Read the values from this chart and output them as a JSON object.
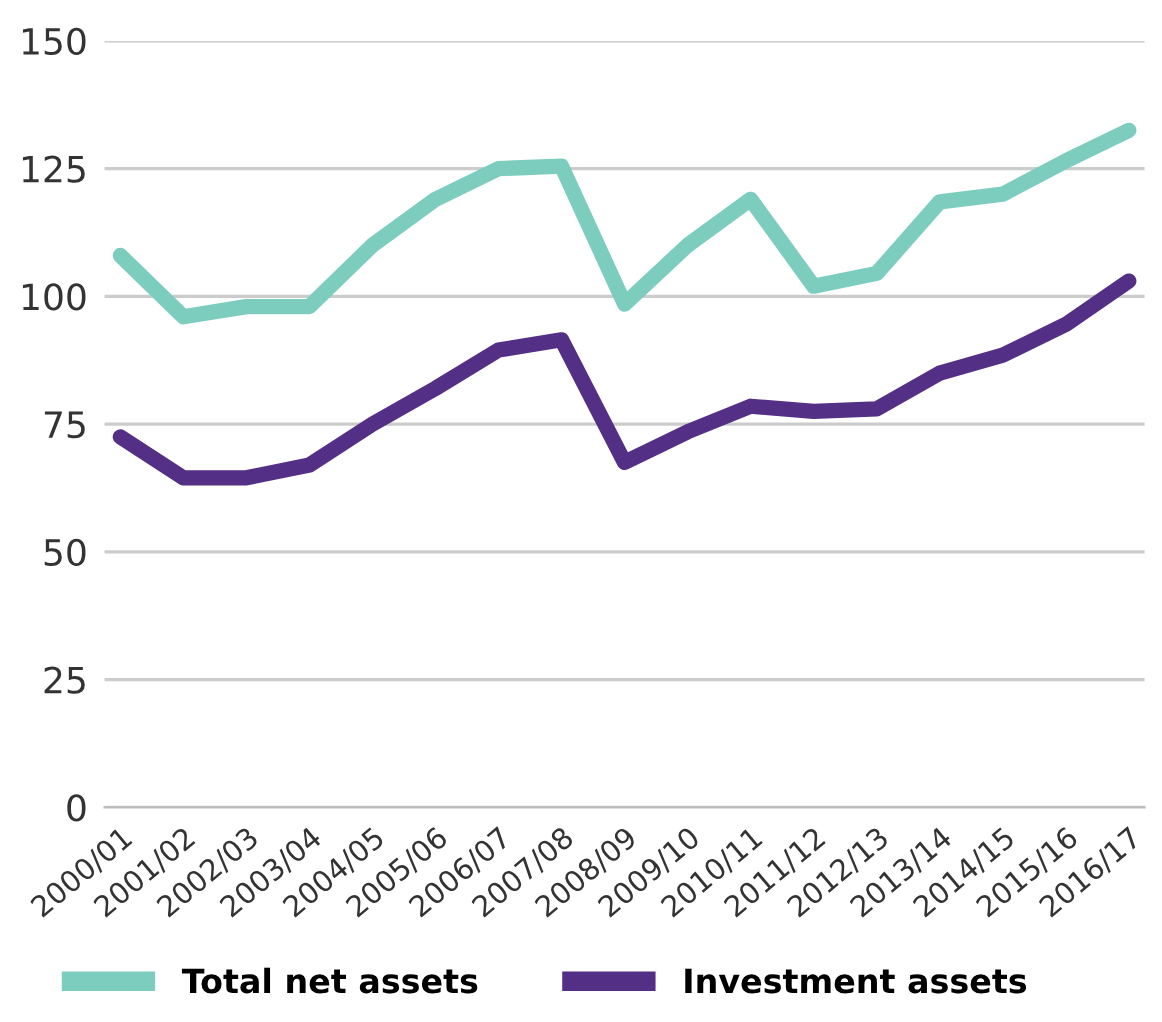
{
  "chart_data": {
    "type": "line",
    "categories": [
      "2000/01",
      "2001/02",
      "2002/03",
      "2003/04",
      "2004/05",
      "2005/06",
      "2006/07",
      "2007/08",
      "2008/09",
      "2009/10",
      "2010/11",
      "2011/12",
      "2012/13",
      "2013/14",
      "2014/15",
      "2015/16",
      "2016/17"
    ],
    "series": [
      {
        "name": "Total net assets",
        "color": "#7dcdbf",
        "values": [
          108,
          96,
          98,
          98,
          110,
          119,
          125,
          125.5,
          98.5,
          110,
          119,
          102,
          104.5,
          118.5,
          120,
          126.5,
          132.5
        ]
      },
      {
        "name": "Investment assets",
        "color": "#532f85",
        "values": [
          72.5,
          64.5,
          64.5,
          67,
          75,
          82,
          89.5,
          91.5,
          67.5,
          73.5,
          78.5,
          77.5,
          78,
          85,
          88.5,
          94.5,
          103
        ]
      }
    ],
    "ylim": [
      0,
      150
    ],
    "yticks": [
      0,
      25,
      50,
      75,
      100,
      125,
      150
    ],
    "grid": "y",
    "legend": "bottom left",
    "line_style": "solid"
  }
}
